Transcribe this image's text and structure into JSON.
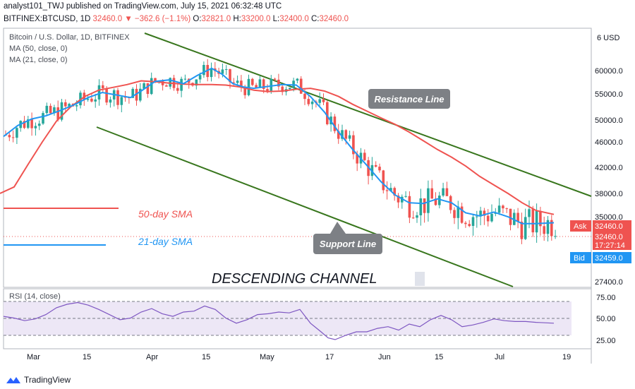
{
  "header": {
    "publisher_line": "analyst101_TWJ published on TradingView.com, July 15, 2021 06:32:48 UTC",
    "symbol": "BITFINEX:BTCUSD, 1D",
    "last": "32460.0",
    "change": "−362.6 (−1.1%)",
    "o_label": "O:",
    "o_value": "32821.0",
    "h_label": "H:",
    "h_value": "33200.0",
    "l_label": "L:",
    "l_value": "32400.0",
    "c_label": "C:",
    "c_value": "32460.0"
  },
  "legend": {
    "title": "Bitcoin / U.S. Dollar, 1D, BITFINEX",
    "ma50": "MA (50, close, 0)",
    "ma21": "MA (21, close, 0)",
    "rsi": "RSI (14, close)"
  },
  "colors": {
    "up": "#26a69a",
    "down": "#ef5350",
    "ma50": "#ef5350",
    "ma21": "#2196f3",
    "channel": "#38761d",
    "rsi_line": "#7e57c2",
    "rsi_band": "#ede7f6"
  },
  "footer": {
    "brand": "TradingView"
  },
  "chart_data": {
    "type": "candlestick",
    "title": "Bitcoin / U.S. Dollar, 1D, BITFINEX",
    "price_axis": {
      "ticks": [
        "60000.0",
        "55000.0",
        "50000.0",
        "46000.0",
        "42000.0",
        "38000.0",
        "35000.0",
        "27400.0"
      ],
      "currency": "USD"
    },
    "x_ticks": [
      "Mar",
      "15",
      "Apr",
      "15",
      "May",
      "17",
      "Jun",
      "15",
      "Jul",
      "19"
    ],
    "series": [
      {
        "name": "MA (50, close, 0)",
        "key": "ma50",
        "values": [
          [
            0,
            38000
          ],
          [
            20,
            39000
          ],
          [
            40,
            42500
          ],
          [
            60,
            46000
          ],
          [
            80,
            49800
          ],
          [
            100,
            52500
          ],
          [
            120,
            54500
          ],
          [
            140,
            55800
          ],
          [
            160,
            56400
          ],
          [
            180,
            57000
          ],
          [
            200,
            57800
          ],
          [
            220,
            57600
          ],
          [
            240,
            57300
          ],
          [
            260,
            57100
          ],
          [
            280,
            57000
          ],
          [
            300,
            57000
          ],
          [
            320,
            56900
          ],
          [
            340,
            56500
          ],
          [
            360,
            55800
          ],
          [
            380,
            55500
          ],
          [
            400,
            55600
          ],
          [
            420,
            56000
          ],
          [
            440,
            56200
          ],
          [
            460,
            55600
          ],
          [
            480,
            54500
          ],
          [
            500,
            53000
          ],
          [
            520,
            51700
          ],
          [
            540,
            50400
          ],
          [
            560,
            49200
          ],
          [
            580,
            47800
          ],
          [
            600,
            46200
          ],
          [
            620,
            44800
          ],
          [
            640,
            43600
          ],
          [
            660,
            42200
          ],
          [
            680,
            40600
          ],
          [
            700,
            39300
          ],
          [
            720,
            38000
          ],
          [
            740,
            36800
          ],
          [
            760,
            35800
          ],
          [
            785,
            35300
          ]
        ]
      },
      {
        "name": "MA (21, close, 0)",
        "key": "ma21",
        "values": [
          [
            5,
            47000
          ],
          [
            25,
            49000
          ],
          [
            45,
            50200
          ],
          [
            65,
            50800
          ],
          [
            85,
            51800
          ],
          [
            105,
            52900
          ],
          [
            125,
            54300
          ],
          [
            145,
            55300
          ],
          [
            165,
            54800
          ],
          [
            185,
            54300
          ],
          [
            200,
            55600
          ],
          [
            220,
            57700
          ],
          [
            240,
            58000
          ],
          [
            260,
            57200
          ],
          [
            280,
            59000
          ],
          [
            300,
            60500
          ],
          [
            315,
            59200
          ],
          [
            330,
            57200
          ],
          [
            345,
            56500
          ],
          [
            360,
            56200
          ],
          [
            380,
            56600
          ],
          [
            400,
            57000
          ],
          [
            420,
            56900
          ],
          [
            440,
            54500
          ],
          [
            460,
            51500
          ],
          [
            480,
            47800
          ],
          [
            500,
            44800
          ],
          [
            520,
            42300
          ],
          [
            540,
            39800
          ],
          [
            560,
            37800
          ],
          [
            580,
            36800
          ],
          [
            600,
            36700
          ],
          [
            620,
            37300
          ],
          [
            640,
            36800
          ],
          [
            660,
            35500
          ],
          [
            680,
            35100
          ],
          [
            700,
            35600
          ],
          [
            720,
            35000
          ],
          [
            740,
            34200
          ],
          [
            760,
            34200
          ],
          [
            785,
            34300
          ]
        ]
      }
    ],
    "annotations": {
      "resistance": "Resistance Line",
      "support": "Support Line",
      "sma50": "50-day SMA",
      "sma21": "21-day SMA",
      "pattern": "DESCENDING CHANNEL"
    },
    "price_labels": {
      "top_unit": "6 USD",
      "ask_label": "Ask",
      "ask_value": "32460.0",
      "last_value": "32460.0",
      "countdown": "17:27:14",
      "bid_label": "Bid",
      "bid_value": "32459.0"
    },
    "rsi": {
      "name": "RSI (14, close)",
      "levels": [
        70,
        50,
        30
      ],
      "ticks": [
        "75.00",
        "50.00",
        "25.00"
      ],
      "values": [
        [
          5,
          52
        ],
        [
          20,
          50
        ],
        [
          35,
          47
        ],
        [
          50,
          49
        ],
        [
          65,
          54
        ],
        [
          80,
          62
        ],
        [
          95,
          66
        ],
        [
          110,
          68
        ],
        [
          125,
          65
        ],
        [
          140,
          60
        ],
        [
          155,
          54
        ],
        [
          170,
          48
        ],
        [
          185,
          50
        ],
        [
          200,
          57
        ],
        [
          215,
          61
        ],
        [
          230,
          55
        ],
        [
          245,
          52
        ],
        [
          260,
          57
        ],
        [
          275,
          58
        ],
        [
          290,
          64
        ],
        [
          305,
          60
        ],
        [
          320,
          50
        ],
        [
          335,
          44
        ],
        [
          350,
          48
        ],
        [
          365,
          54
        ],
        [
          380,
          55
        ],
        [
          395,
          57
        ],
        [
          410,
          56
        ],
        [
          425,
          60
        ],
        [
          440,
          44
        ],
        [
          455,
          34
        ],
        [
          465,
          27
        ],
        [
          475,
          25
        ],
        [
          490,
          30
        ],
        [
          505,
          34
        ],
        [
          520,
          34
        ],
        [
          535,
          38
        ],
        [
          550,
          40
        ],
        [
          565,
          36
        ],
        [
          580,
          43
        ],
        [
          595,
          40
        ],
        [
          610,
          48
        ],
        [
          625,
          53
        ],
        [
          640,
          48
        ],
        [
          655,
          40
        ],
        [
          670,
          42
        ],
        [
          685,
          45
        ],
        [
          700,
          49
        ],
        [
          715,
          47
        ],
        [
          730,
          46
        ],
        [
          745,
          46
        ],
        [
          760,
          45
        ],
        [
          785,
          44
        ]
      ]
    }
  }
}
